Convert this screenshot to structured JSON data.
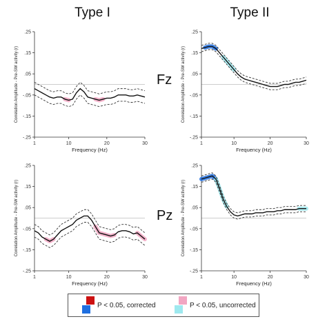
{
  "columns": [
    "Type I",
    "Type II"
  ],
  "rows": [
    "Fz",
    "Pz"
  ],
  "legend": {
    "corrected_label": "P < 0.05, corrected",
    "uncorrected_label": "P < 0.05, uncorrected",
    "colors": {
      "corrected_typeI": "#cc1111",
      "corrected_typeII": "#1f6fe0",
      "uncorrected_typeI": "#f2a6c2",
      "uncorrected_typeII": "#9ee9ef"
    }
  },
  "chart_data": [
    {
      "type": "line",
      "panel": "Type I / Fz",
      "xlabel": "Frequency (Hz)",
      "ylabel": "Correlation Amplitude - Pre-SW activity (r)",
      "xlim": [
        1,
        30
      ],
      "ylim": [
        -0.25,
        0.25
      ],
      "xticks": [
        1,
        10,
        20,
        30
      ],
      "yticks": [
        ".25",
        ".15",
        ".05",
        "-.05",
        "-.15",
        "-.25"
      ],
      "ytick_values": [
        0.25,
        0.15,
        0.05,
        -0.05,
        -0.15,
        -0.25
      ],
      "x": [
        1,
        2,
        3,
        4,
        5,
        6,
        7,
        8,
        9,
        10,
        11,
        12,
        13,
        14,
        15,
        16,
        17,
        18,
        19,
        20,
        21,
        22,
        23,
        24,
        25,
        26,
        27,
        28,
        29,
        30
      ],
      "series": [
        {
          "values": [
            -0.02,
            -0.03,
            -0.04,
            -0.05,
            -0.06,
            -0.065,
            -0.06,
            -0.06,
            -0.07,
            -0.075,
            -0.07,
            -0.04,
            -0.02,
            -0.035,
            -0.06,
            -0.065,
            -0.07,
            -0.075,
            -0.07,
            -0.065,
            -0.065,
            -0.06,
            -0.05,
            -0.05,
            -0.05,
            -0.055,
            -0.055,
            -0.05,
            -0.055,
            -0.06
          ],
          "lower": [
            -0.05,
            -0.06,
            -0.07,
            -0.08,
            -0.09,
            -0.095,
            -0.09,
            -0.09,
            -0.1,
            -0.105,
            -0.1,
            -0.07,
            -0.05,
            -0.065,
            -0.09,
            -0.095,
            -0.1,
            -0.105,
            -0.1,
            -0.095,
            -0.095,
            -0.09,
            -0.08,
            -0.08,
            -0.08,
            -0.085,
            -0.085,
            -0.08,
            -0.085,
            -0.09
          ],
          "upper": [
            0.01,
            0.0,
            -0.01,
            -0.02,
            -0.03,
            -0.035,
            -0.03,
            -0.03,
            -0.04,
            -0.045,
            -0.04,
            -0.01,
            0.01,
            -0.005,
            -0.03,
            -0.035,
            -0.04,
            -0.045,
            -0.04,
            -0.035,
            -0.035,
            -0.03,
            -0.02,
            -0.02,
            -0.02,
            -0.025,
            -0.025,
            -0.02,
            -0.025,
            -0.03
          ]
        }
      ],
      "highlights": [
        {
          "x_from": 9,
          "x_to": 10,
          "significance": "uncorrected"
        },
        {
          "x_from": 17,
          "x_to": 19,
          "significance": "uncorrected"
        }
      ]
    },
    {
      "type": "line",
      "panel": "Type II / Fz",
      "xlabel": "Frequency (Hz)",
      "ylabel": "Correlation Amplitude - Pre-SW activity (r)",
      "xlim": [
        1,
        30
      ],
      "ylim": [
        -0.25,
        0.25
      ],
      "xticks": [
        1,
        10,
        20,
        30
      ],
      "yticks": [
        ".25",
        ".15",
        ".05",
        "-.05",
        "-.15",
        "-.25"
      ],
      "ytick_values": [
        0.25,
        0.15,
        0.05,
        -0.05,
        -0.15,
        -0.25
      ],
      "x": [
        1,
        2,
        3,
        4,
        5,
        6,
        7,
        8,
        9,
        10,
        11,
        12,
        13,
        14,
        15,
        16,
        17,
        18,
        19,
        20,
        21,
        22,
        23,
        24,
        25,
        26,
        27,
        28,
        29,
        30
      ],
      "series": [
        {
          "values": [
            0.17,
            0.175,
            0.18,
            0.18,
            0.17,
            0.15,
            0.13,
            0.11,
            0.09,
            0.07,
            0.05,
            0.035,
            0.025,
            0.02,
            0.015,
            0.01,
            0.005,
            0.0,
            -0.005,
            -0.01,
            -0.01,
            -0.01,
            -0.005,
            0.0,
            0.0,
            0.005,
            0.01,
            0.01,
            0.015,
            0.02
          ],
          "lower": [
            0.155,
            0.16,
            0.165,
            0.165,
            0.155,
            0.135,
            0.115,
            0.095,
            0.075,
            0.055,
            0.035,
            0.02,
            0.01,
            0.005,
            0.0,
            -0.005,
            -0.01,
            -0.015,
            -0.02,
            -0.025,
            -0.025,
            -0.025,
            -0.02,
            -0.015,
            -0.015,
            -0.01,
            -0.005,
            -0.005,
            0.0,
            0.005
          ],
          "upper": [
            0.185,
            0.19,
            0.195,
            0.195,
            0.185,
            0.165,
            0.145,
            0.125,
            0.105,
            0.085,
            0.065,
            0.05,
            0.04,
            0.035,
            0.03,
            0.025,
            0.02,
            0.015,
            0.01,
            0.005,
            0.005,
            0.005,
            0.01,
            0.015,
            0.015,
            0.02,
            0.025,
            0.025,
            0.03,
            0.035
          ]
        }
      ],
      "highlights": [
        {
          "x_from": 2,
          "x_to": 5,
          "significance": "corrected"
        },
        {
          "x_from": 7,
          "x_to": 10,
          "significance": "uncorrected"
        }
      ]
    },
    {
      "type": "line",
      "panel": "Type I / Pz",
      "xlabel": "Frequency (Hz)",
      "ylabel": "Correlation Amplitude - Pre-SW activity (r)",
      "xlim": [
        1,
        30
      ],
      "ylim": [
        -0.25,
        0.25
      ],
      "xticks": [
        1,
        10,
        20,
        30
      ],
      "yticks": [
        ".25",
        ".15",
        ".05",
        "-.05",
        "-.15",
        "-.25"
      ],
      "ytick_values": [
        0.25,
        0.15,
        0.05,
        -0.05,
        -0.15,
        -0.25
      ],
      "x": [
        1,
        2,
        3,
        4,
        5,
        6,
        7,
        8,
        9,
        10,
        11,
        12,
        13,
        14,
        15,
        16,
        17,
        18,
        19,
        20,
        21,
        22,
        23,
        24,
        25,
        26,
        27,
        28,
        29,
        30
      ],
      "series": [
        {
          "values": [
            -0.06,
            -0.07,
            -0.09,
            -0.1,
            -0.11,
            -0.1,
            -0.08,
            -0.06,
            -0.05,
            -0.04,
            -0.03,
            -0.01,
            0.0,
            0.01,
            0.01,
            -0.01,
            -0.04,
            -0.07,
            -0.075,
            -0.08,
            -0.085,
            -0.08,
            -0.065,
            -0.06,
            -0.06,
            -0.065,
            -0.075,
            -0.07,
            -0.085,
            -0.1
          ],
          "lower": [
            -0.09,
            -0.1,
            -0.12,
            -0.13,
            -0.14,
            -0.13,
            -0.11,
            -0.09,
            -0.08,
            -0.07,
            -0.06,
            -0.04,
            -0.03,
            -0.02,
            -0.02,
            -0.04,
            -0.07,
            -0.1,
            -0.105,
            -0.11,
            -0.115,
            -0.11,
            -0.095,
            -0.09,
            -0.09,
            -0.095,
            -0.105,
            -0.1,
            -0.115,
            -0.13
          ],
          "upper": [
            -0.03,
            -0.04,
            -0.06,
            -0.07,
            -0.08,
            -0.07,
            -0.05,
            -0.03,
            -0.02,
            -0.01,
            0.0,
            0.02,
            0.03,
            0.04,
            0.04,
            0.02,
            -0.01,
            -0.04,
            -0.045,
            -0.05,
            -0.055,
            -0.05,
            -0.035,
            -0.03,
            -0.03,
            -0.035,
            -0.045,
            -0.04,
            -0.055,
            -0.07
          ]
        }
      ],
      "highlights": [
        {
          "x_from": 4,
          "x_to": 6,
          "significance": "uncorrected"
        },
        {
          "x_from": 17,
          "x_to": 22,
          "significance": "uncorrected"
        },
        {
          "x_from": 28,
          "x_to": 30,
          "significance": "uncorrected"
        }
      ]
    },
    {
      "type": "line",
      "panel": "Type II / Pz",
      "xlabel": "Frequency (Hz)",
      "ylabel": "Correlation Amplitude - Pre-SW activity (r)",
      "xlim": [
        1,
        30
      ],
      "ylim": [
        -0.25,
        0.25
      ],
      "xticks": [
        1,
        10,
        20,
        30
      ],
      "yticks": [
        ".25",
        ".15",
        ".05",
        "-.05",
        "-.15",
        "-.25"
      ],
      "ytick_values": [
        0.25,
        0.15,
        0.05,
        -0.05,
        -0.15,
        -0.25
      ],
      "x": [
        1,
        2,
        3,
        4,
        5,
        6,
        7,
        8,
        9,
        10,
        11,
        12,
        13,
        14,
        15,
        16,
        17,
        18,
        19,
        20,
        21,
        22,
        23,
        24,
        25,
        26,
        27,
        28,
        29,
        30
      ],
      "series": [
        {
          "values": [
            0.185,
            0.19,
            0.195,
            0.2,
            0.185,
            0.14,
            0.09,
            0.055,
            0.03,
            0.015,
            0.01,
            0.015,
            0.02,
            0.02,
            0.02,
            0.025,
            0.025,
            0.025,
            0.03,
            0.03,
            0.03,
            0.035,
            0.035,
            0.04,
            0.04,
            0.04,
            0.04,
            0.045,
            0.045,
            0.045
          ],
          "lower": [
            0.17,
            0.175,
            0.18,
            0.185,
            0.17,
            0.125,
            0.075,
            0.04,
            0.015,
            0.0,
            -0.005,
            0.0,
            0.005,
            0.005,
            0.005,
            0.01,
            0.01,
            0.01,
            0.015,
            0.015,
            0.015,
            0.02,
            0.02,
            0.025,
            0.025,
            0.025,
            0.025,
            0.03,
            0.03,
            0.03
          ],
          "upper": [
            0.2,
            0.205,
            0.21,
            0.215,
            0.2,
            0.155,
            0.105,
            0.07,
            0.045,
            0.03,
            0.025,
            0.03,
            0.035,
            0.035,
            0.035,
            0.04,
            0.04,
            0.04,
            0.045,
            0.045,
            0.045,
            0.05,
            0.05,
            0.055,
            0.055,
            0.055,
            0.055,
            0.06,
            0.06,
            0.06
          ]
        }
      ],
      "highlights": [
        {
          "x_from": 1,
          "x_to": 5,
          "significance": "corrected"
        },
        {
          "x_from": 5,
          "x_to": 8,
          "significance": "uncorrected"
        },
        {
          "x_from": 28,
          "x_to": 30,
          "significance": "uncorrected"
        }
      ]
    }
  ]
}
